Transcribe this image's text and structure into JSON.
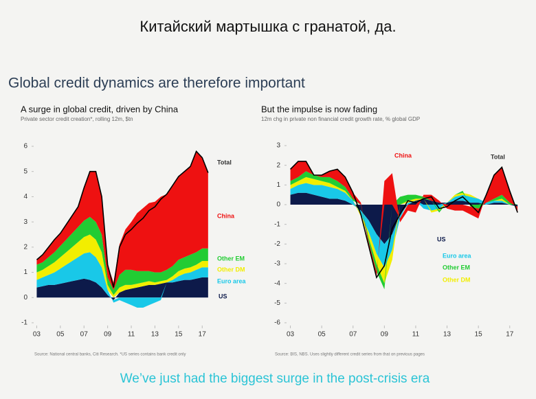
{
  "slide_title": "Китайский мартышка с гранатой, да.",
  "heading": "Global credit dynamics are therefore important",
  "footer": "We’ve just had the biggest surge in the post-crisis era",
  "chart_data": [
    {
      "type": "stacked_area",
      "title": "A surge in global credit, driven by China",
      "subtitle": "Private sector credit creation*, rolling 12m, $tn",
      "source": "Source: National central banks, Citi Research. *US series contains bank credit only",
      "x": [
        2003,
        2003.5,
        2004,
        2004.5,
        2005,
        2005.5,
        2006,
        2006.5,
        2007,
        2007.5,
        2008,
        2008.5,
        2009,
        2009.5,
        2010,
        2010.5,
        2011,
        2011.5,
        2012,
        2012.5,
        2013,
        2013.5,
        2014,
        2014.5,
        2015,
        2015.5,
        2016,
        2016.5,
        2017,
        2017.5
      ],
      "xlim": [
        2002.8,
        2017.8
      ],
      "xticks": [
        {
          "value": 2003,
          "label": "03"
        },
        {
          "value": 2005,
          "label": "05"
        },
        {
          "value": 2007,
          "label": "07"
        },
        {
          "value": 2009,
          "label": "09"
        },
        {
          "value": 2011,
          "label": "11"
        },
        {
          "value": 2013,
          "label": "13"
        },
        {
          "value": 2015,
          "label": "15"
        },
        {
          "value": 2017,
          "label": "17"
        }
      ],
      "ylim": [
        -1,
        6
      ],
      "yticks": [
        -1,
        0,
        1,
        2,
        3,
        4,
        5,
        6
      ],
      "series": [
        {
          "name": "US",
          "color": "#0d1a4a",
          "values": [
            0.4,
            0.45,
            0.5,
            0.5,
            0.55,
            0.6,
            0.65,
            0.7,
            0.75,
            0.7,
            0.6,
            0.4,
            0.1,
            -0.1,
            0.2,
            0.3,
            0.35,
            0.4,
            0.45,
            0.5,
            0.5,
            0.55,
            0.6,
            0.6,
            0.65,
            0.7,
            0.7,
            0.75,
            0.8,
            0.8
          ]
        },
        {
          "name": "Euro area",
          "color": "#19c8e8",
          "values": [
            0.3,
            0.35,
            0.4,
            0.5,
            0.6,
            0.7,
            0.8,
            0.9,
            1.0,
            1.1,
            1.0,
            0.8,
            0.2,
            -0.1,
            -0.1,
            -0.2,
            -0.3,
            -0.4,
            -0.4,
            -0.3,
            -0.2,
            -0.1,
            0,
            0.1,
            0.2,
            0.25,
            0.3,
            0.35,
            0.4,
            0.4
          ]
        },
        {
          "name": "Other DM",
          "color": "#f2ee00",
          "values": [
            0.3,
            0.3,
            0.35,
            0.4,
            0.45,
            0.5,
            0.55,
            0.6,
            0.65,
            0.7,
            0.7,
            0.6,
            0.2,
            0.1,
            0.2,
            0.2,
            0.15,
            0.15,
            0.15,
            0.15,
            0.1,
            0.1,
            0.1,
            0.15,
            0.2,
            0.2,
            0.2,
            0.2,
            0.25,
            0.25
          ]
        },
        {
          "name": "Other EM",
          "color": "#22cc33",
          "values": [
            0.3,
            0.3,
            0.35,
            0.4,
            0.45,
            0.5,
            0.55,
            0.6,
            0.65,
            0.7,
            0.7,
            0.7,
            0.3,
            0.2,
            0.5,
            0.6,
            0.6,
            0.5,
            0.45,
            0.4,
            0.4,
            0.35,
            0.4,
            0.4,
            0.45,
            0.45,
            0.5,
            0.5,
            0.5,
            0.5
          ]
        },
        {
          "name": "China",
          "color": "#ee1111",
          "values": [
            0.2,
            0.3,
            0.4,
            0.5,
            0.5,
            0.6,
            0.7,
            0.8,
            1.3,
            1.8,
            2.0,
            1.5,
            0.5,
            0.3,
            1.2,
            1.6,
            1.9,
            2.3,
            2.5,
            2.7,
            2.8,
            3.0,
            3.0,
            3.2,
            3.3,
            3.4,
            3.5,
            4.0,
            3.6,
            3.0
          ]
        },
        {
          "name": "Total",
          "color": "#000000",
          "line": true,
          "values": [
            1.5,
            1.7,
            2.0,
            2.3,
            2.55,
            2.9,
            3.25,
            3.6,
            4.35,
            5.0,
            5.0,
            4.0,
            1.3,
            0.4,
            2.0,
            2.5,
            2.7,
            2.95,
            3.15,
            3.45,
            3.6,
            3.9,
            4.1,
            4.45,
            4.8,
            5.0,
            5.2,
            5.8,
            5.55,
            4.95
          ]
        }
      ]
    },
    {
      "type": "stacked_area",
      "title": "But the impulse is now fading",
      "subtitle": "12m chg in private non financial credit growth rate, % global GDP",
      "source": "Source: BIS, NBS. Uses slightly different credit series from that on previous pages",
      "x": [
        2003,
        2003.5,
        2004,
        2004.5,
        2005,
        2005.5,
        2006,
        2006.5,
        2007,
        2007.5,
        2008,
        2008.5,
        2009,
        2009.5,
        2010,
        2010.5,
        2011,
        2011.5,
        2012,
        2012.5,
        2013,
        2013.5,
        2014,
        2014.5,
        2015,
        2015.5,
        2016,
        2016.5,
        2017,
        2017.5
      ],
      "xlim": [
        2002.8,
        2017.8
      ],
      "xticks": [
        {
          "value": 2003,
          "label": "03"
        },
        {
          "value": 2005,
          "label": "05"
        },
        {
          "value": 2007,
          "label": "07"
        },
        {
          "value": 2009,
          "label": "09"
        },
        {
          "value": 2011,
          "label": "11"
        },
        {
          "value": 2013,
          "label": "13"
        },
        {
          "value": 2015,
          "label": "15"
        },
        {
          "value": 2017,
          "label": "17"
        }
      ],
      "ylim": [
        -6,
        3
      ],
      "yticks": [
        -6,
        -5,
        -4,
        -3,
        -2,
        -1,
        0,
        1,
        2,
        3
      ],
      "series": [
        {
          "name": "US",
          "color": "#0d1a4a",
          "values": [
            0.5,
            0.6,
            0.6,
            0.5,
            0.4,
            0.3,
            0.3,
            0.2,
            0,
            -0.3,
            -0.8,
            -1.5,
            -2,
            -1.5,
            -0.5,
            0,
            0.2,
            0.3,
            0.2,
            0.1,
            0.1,
            0.2,
            0.2,
            0.1,
            0.1,
            0,
            0.1,
            0.1,
            0,
            -0.1
          ]
        },
        {
          "name": "Euro area",
          "color": "#19c8e8",
          "values": [
            0.3,
            0.4,
            0.5,
            0.5,
            0.6,
            0.6,
            0.5,
            0.4,
            0.2,
            -0.2,
            -0.6,
            -1,
            -1.2,
            -0.8,
            -0.2,
            0.1,
            0,
            -0.2,
            -0.3,
            -0.2,
            0,
            0.2,
            0.3,
            0.3,
            0.2,
            0.1,
            0.1,
            0.1,
            0,
            0
          ]
        },
        {
          "name": "Other DM",
          "color": "#f2ee00",
          "values": [
            0.2,
            0.2,
            0.3,
            0.3,
            0.2,
            0.2,
            0.1,
            0.1,
            0,
            -0.1,
            -0.3,
            -0.5,
            -0.8,
            -0.5,
            0,
            0.1,
            0.1,
            0,
            -0.1,
            -0.1,
            0,
            0.1,
            0.1,
            0.1,
            0,
            0,
            0,
            0.1,
            0,
            0
          ]
        },
        {
          "name": "Other EM",
          "color": "#22cc33",
          "values": [
            0.2,
            0.2,
            0.3,
            0.2,
            0.2,
            0.3,
            0.3,
            0.2,
            0.1,
            0,
            -0.2,
            -0.4,
            -0.3,
            0,
            0.4,
            0.3,
            0.2,
            0.1,
            0,
            -0.1,
            0,
            0,
            0.1,
            -0.1,
            -0.2,
            0,
            0.1,
            0.2,
            0.1,
            0
          ]
        },
        {
          "name": "China",
          "color": "#ee1111",
          "values": [
            0.6,
            0.8,
            0.5,
            0,
            0.1,
            0.3,
            0.6,
            0.5,
            0.3,
            0.1,
            -0.2,
            -0.3,
            1.2,
            1.6,
            -0.2,
            -0.3,
            -0.4,
            0.1,
            0.3,
            0.1,
            -0.2,
            -0.3,
            -0.3,
            -0.4,
            -0.5,
            0.4,
            1.2,
            1.4,
            0.6,
            -0.3
          ]
        },
        {
          "name": "Total",
          "color": "#000000",
          "line": true,
          "values": [
            1.8,
            2.2,
            2.2,
            1.5,
            1.5,
            1.7,
            1.8,
            1.4,
            0.6,
            -0.5,
            -2.1,
            -3.7,
            -3.1,
            -1.2,
            -0.5,
            0.2,
            0.1,
            0.3,
            0.4,
            -0.2,
            -0.1,
            0.2,
            0.4,
            0,
            -0.4,
            0.5,
            1.5,
            1.9,
            0.7,
            -0.4
          ]
        }
      ]
    }
  ]
}
